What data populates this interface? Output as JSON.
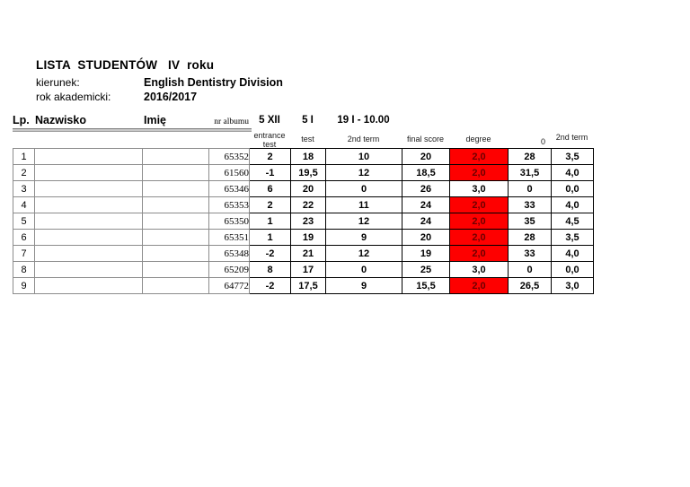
{
  "doc": {
    "title": "LISTA  STUDENTÓW   IV  roku",
    "meta": [
      {
        "label": "kierunek:",
        "value": "English Dentistry Division"
      },
      {
        "label": "rok akademicki:",
        "value": "2016/2017"
      }
    ]
  },
  "table": {
    "header": {
      "lp": "Lp.",
      "nazwisko": "Nazwisko",
      "imie": "Imię",
      "nr_albumu": "nr albumu",
      "date_entrance": "5 XII",
      "date_test": "5 I",
      "date_term2": "19 I - 10.00",
      "sub_entrance": "entrance test",
      "sub_test": "test",
      "sub_term2": "2nd term",
      "sub_final": "final score",
      "sub_degree": "degree",
      "sub_zero": "0",
      "sub_term2b": "2nd term"
    },
    "rows": [
      {
        "lp": "1",
        "nazwisko": "",
        "imie": "",
        "album": "65352",
        "entrance": "2",
        "test": "18",
        "term2": "10",
        "final": "20",
        "degree": "2,0",
        "degree_red": true,
        "col0": "28",
        "term2b": "3,5"
      },
      {
        "lp": "2",
        "nazwisko": "",
        "imie": "",
        "album": "61560",
        "entrance": "-1",
        "test": "19,5",
        "term2": "12",
        "final": "18,5",
        "degree": "2,0",
        "degree_red": true,
        "col0": "31,5",
        "term2b": "4,0"
      },
      {
        "lp": "3",
        "nazwisko": "",
        "imie": "",
        "album": "65346",
        "entrance": "6",
        "test": "20",
        "term2": "0",
        "final": "26",
        "degree": "3,0",
        "degree_red": false,
        "col0": "0",
        "term2b": "0,0"
      },
      {
        "lp": "4",
        "nazwisko": "",
        "imie": "",
        "album": "65353",
        "entrance": "2",
        "test": "22",
        "term2": "11",
        "final": "24",
        "degree": "2,0",
        "degree_red": true,
        "col0": "33",
        "term2b": "4,0"
      },
      {
        "lp": "5",
        "nazwisko": "",
        "imie": "",
        "album": "65350",
        "entrance": "1",
        "test": "23",
        "term2": "12",
        "final": "24",
        "degree": "2,0",
        "degree_red": true,
        "col0": "35",
        "term2b": "4,5"
      },
      {
        "lp": "6",
        "nazwisko": "",
        "imie": "",
        "album": "65351",
        "entrance": "1",
        "test": "19",
        "term2": "9",
        "final": "20",
        "degree": "2,0",
        "degree_red": true,
        "col0": "28",
        "term2b": "3,5"
      },
      {
        "lp": "7",
        "nazwisko": "",
        "imie": "",
        "album": "65348",
        "entrance": "-2",
        "test": "21",
        "term2": "12",
        "final": "19",
        "degree": "2,0",
        "degree_red": true,
        "col0": "33",
        "term2b": "4,0"
      },
      {
        "lp": "8",
        "nazwisko": "",
        "imie": "",
        "album": "65209",
        "entrance": "8",
        "test": "17",
        "term2": "0",
        "final": "25",
        "degree": "3,0",
        "degree_red": false,
        "col0": "0",
        "term2b": "0,0"
      },
      {
        "lp": "9",
        "nazwisko": "",
        "imie": "",
        "album": "64772",
        "entrance": "-2",
        "test": "17,5",
        "term2": "9",
        "final": "15,5",
        "degree": "2,0",
        "degree_red": true,
        "col0": "26,5",
        "term2b": "3,0"
      }
    ]
  },
  "colors": {
    "highlight_fill": "#fe0000",
    "highlight_text": "#6d0000",
    "grid_gray": "#8c8c8c"
  }
}
